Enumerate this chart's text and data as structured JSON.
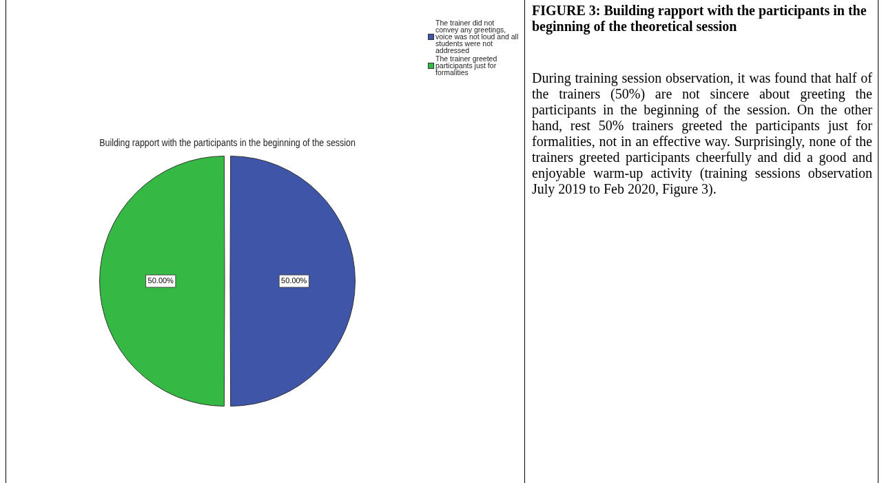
{
  "chart_data": [
    {
      "type": "pie",
      "title": "Building rapport with the participants in the beginning of the session",
      "categories": [
        "The trainer did not convey any greetings, voice was not loud and all students were not addressed",
        "The trainer greeted participants just for formalities"
      ],
      "values": [
        50,
        50
      ],
      "colors": [
        "#3f56a8",
        "#35b944"
      ],
      "value_labels": [
        "50.00%",
        "50.00%"
      ],
      "legend": "top right"
    },
    {
      "type": "other",
      "title": "FIGURE 3: Building rapport with the participants in the beginning of the theoretical session",
      "annotations": [
        "During training session observation, it was found that half of the trainers (50%) are not sincere about greeting the participants in the beginning of the session. On the other hand, rest 50% trainers greeted the participants just for formalities, not in an effective way. Surprisingly, none of the trainers greeted participants cheerfully and did a good and enjoyable warm-up activity (training sessions observation July 2019 to Feb 2020, Figure 3)."
      ]
    }
  ]
}
